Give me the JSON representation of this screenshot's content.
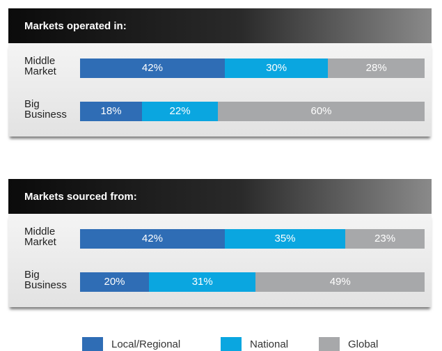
{
  "chart_data": [
    {
      "type": "stacked-bar",
      "title": "Markets operated in:",
      "categories": [
        "Middle Market",
        "Big Business"
      ],
      "xlim": [
        0,
        100
      ],
      "series": [
        {
          "name": "Local/Regional",
          "color": "#2f6db5",
          "values": [
            42,
            18
          ],
          "value_labels": [
            "42%",
            "18%"
          ]
        },
        {
          "name": "National",
          "color": "#0aa6e0",
          "values": [
            30,
            22
          ],
          "value_labels": [
            "30%",
            "22%"
          ]
        },
        {
          "name": "Global",
          "color": "#a7a8aa",
          "values": [
            28,
            60
          ],
          "value_labels": [
            "28%",
            "60%"
          ]
        }
      ]
    },
    {
      "type": "stacked-bar",
      "title": "Markets sourced from:",
      "categories": [
        "Middle Market",
        "Big Business"
      ],
      "xlim": [
        0,
        100
      ],
      "series": [
        {
          "color": "#2f6db5",
          "values": [
            42,
            20
          ],
          "value_labels": [
            "42%",
            "20%"
          ]
        },
        {
          "color": "#0aa6e0",
          "values": [
            35,
            31
          ],
          "value_labels": [
            "35%",
            "31%"
          ]
        },
        {
          "color": "#a7a8aa",
          "values": [
            23,
            49
          ],
          "value_labels": [
            "23%",
            "49%"
          ]
        }
      ]
    }
  ]
}
